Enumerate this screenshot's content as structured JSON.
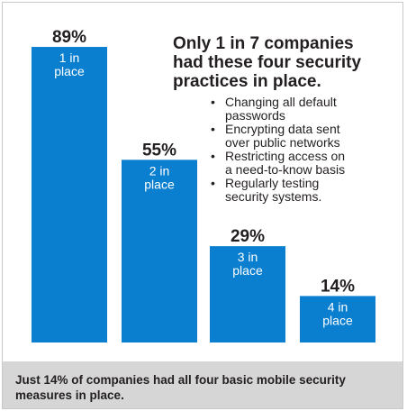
{
  "chart_data": {
    "type": "bar",
    "categories": [
      "1 in place",
      "2 in place",
      "3 in place",
      "4 in place"
    ],
    "category_lines": [
      [
        "1 in",
        "place"
      ],
      [
        "2 in",
        "place"
      ],
      [
        "3 in",
        "place"
      ],
      [
        "4 in",
        "place"
      ]
    ],
    "values": [
      89,
      55,
      29,
      14
    ],
    "value_labels": [
      "89%",
      "55%",
      "29%",
      "14%"
    ],
    "title": "Only 1 in 7 companies had these four security practices in place.",
    "xlabel": "",
    "ylabel": "",
    "ylim": [
      0,
      100
    ],
    "grid": false,
    "bar_color": "#0a7fd0"
  },
  "headline": {
    "lines": [
      "Only 1 in 7 companies",
      "had these four security",
      "practices in place."
    ]
  },
  "practices": [
    {
      "bullet": "•",
      "lines": [
        "Changing all default",
        "passwords"
      ]
    },
    {
      "bullet": "•",
      "lines": [
        "Encrypting data sent",
        "over public networks"
      ]
    },
    {
      "bullet": "•",
      "lines": [
        "Restricting access on",
        "a need-to-know basis"
      ]
    },
    {
      "bullet": "•",
      "lines": [
        "Regularly testing",
        "security systems."
      ]
    }
  ],
  "footer": {
    "line1": "Just 14% of companies had all four basic mobile security",
    "line2": "measures in place."
  },
  "colors": {
    "bar": "#0a7fd0",
    "footer_bg": "#d6d6d6",
    "text": "#231f20"
  }
}
